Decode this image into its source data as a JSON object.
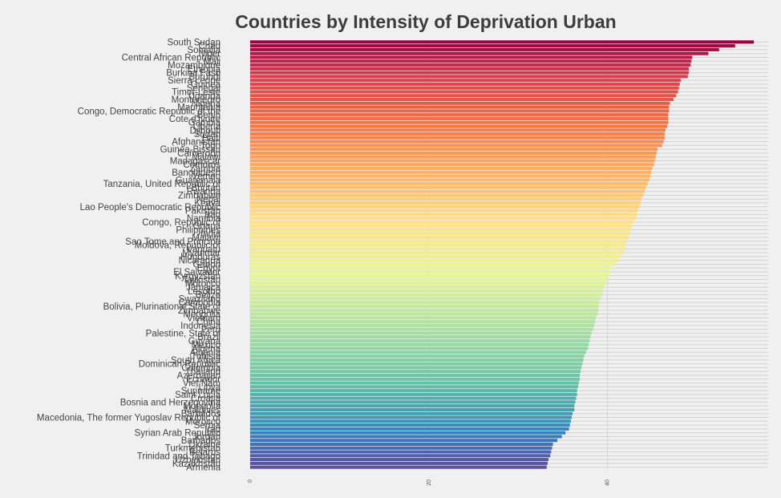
{
  "chart_data": {
    "type": "bar",
    "orientation": "horizontal",
    "title": "Countries by Intensity of Deprivation Urban",
    "xlabel": "",
    "ylabel": "",
    "xlim": [
      0,
      58
    ],
    "xticks": [
      0,
      20,
      40
    ],
    "xtick_labels": [
      "0",
      "20",
      "40"
    ],
    "grid": true,
    "legend": "none",
    "colormap": "Spectral (red at top to purple at bottom)",
    "categories": [
      "South Sudan",
      "Chad",
      "Somalia",
      "Niger",
      "Central African Republic",
      "Mali",
      "Mozambique",
      "Ethiopia",
      "Burkina Faso",
      "Burundi",
      "Sierra Leone",
      "Guinea",
      "Senegal",
      "Timor-Leste",
      "Uganda",
      "Montenegro",
      "Nigeria",
      "Mauritania",
      "Congo, Democratic Republic of the",
      "Benin",
      "Cote d'Ivoire",
      "Gambia",
      "Liberia",
      "Djibouti",
      "Sudan",
      "Haiti",
      "Afghanistan",
      "Togo",
      "Guinea-Bissau",
      "Cameroon",
      "Malawi",
      "Madagascar",
      "Comoros",
      "Zambia",
      "Bangladesh",
      "Yemen",
      "Guatemala",
      "Tanzania, United Republic of",
      "Bhutan",
      "Rwanda",
      "Zimbabwe",
      "Nepal",
      "Kenya",
      "Lao People's Democratic Republic",
      "Pakistan",
      "Iraq",
      "Namibia",
      "Congo, Republic of",
      "Ghana",
      "Philippines",
      "India",
      "Malawi",
      "Sao Tome and Principe",
      "Moldova, Republic of",
      "Vanuatu",
      "Myanmar",
      "Honduras",
      "Nicaragua",
      "Gabon",
      "Egypt",
      "El Salvador",
      "Kyrgyzstan",
      "Tajikistan",
      "Morocco",
      "Jamaica",
      "Lesotho",
      "Belize",
      "Swaziland",
      "Cambodia",
      "Bolivia, Plurinational State of",
      "Zimbabwe",
      "Mongolia",
      "Vietnam",
      "China",
      "Indonesia",
      "Peru",
      "Palestine, State of",
      "Brazil",
      "Guyana",
      "Mexico",
      "Algeria",
      "Albania",
      "Tunisia",
      "South Africa",
      "Dominican Republic",
      "Colombia",
      "Thailand",
      "Azerbaijan",
      "Ecuador",
      "Viet Nam",
      "Libya",
      "Suriname",
      "Saint Lucia",
      "Croatia",
      "Bosnia and Herzegovina",
      "Mongolia",
      "Maldives",
      "Barbados",
      "Macedonia, The former Yugoslav Republic of",
      "Morocco",
      "Serbia",
      "Iraq",
      "Syrian Arab Republic",
      "Jordan",
      "Barbados",
      "Ukraine",
      "Turkmenistan",
      "Belarus",
      "Trinidad and Tobago",
      "Uzbekistan",
      "Kazakhstan",
      "Armenia"
    ],
    "values": [
      56.4,
      54.3,
      52.5,
      51.3,
      49.5,
      49.4,
      49.3,
      49.1,
      49.1,
      49.0,
      48.2,
      48.1,
      48.0,
      47.9,
      47.7,
      47.4,
      47.0,
      46.9,
      46.9,
      46.8,
      46.8,
      46.8,
      46.7,
      46.5,
      46.4,
      46.4,
      46.3,
      46.1,
      45.6,
      45.5,
      45.4,
      45.3,
      45.2,
      45.0,
      44.9,
      44.8,
      44.7,
      44.5,
      44.3,
      44.2,
      44.0,
      43.8,
      43.7,
      43.6,
      43.4,
      43.3,
      43.2,
      42.9,
      42.8,
      42.6,
      42.5,
      42.4,
      42.2,
      42.0,
      42.0,
      41.8,
      41.4,
      41.2,
      40.9,
      40.5,
      40.3,
      40.2,
      40.0,
      39.9,
      39.7,
      39.5,
      39.4,
      39.2,
      39.1,
      39.0,
      39.0,
      38.9,
      38.7,
      38.6,
      38.5,
      38.4,
      38.2,
      38.1,
      38.0,
      37.9,
      37.8,
      37.6,
      37.4,
      37.3,
      37.2,
      37.1,
      37.0,
      36.9,
      36.9,
      36.8,
      36.7,
      36.6,
      36.6,
      36.5,
      36.4,
      36.3,
      36.3,
      36.1,
      36.0,
      35.9,
      35.8,
      35.7,
      35.3,
      34.9,
      34.4,
      33.9,
      33.8,
      33.7,
      33.6,
      33.4,
      33.3,
      33.2
    ]
  }
}
